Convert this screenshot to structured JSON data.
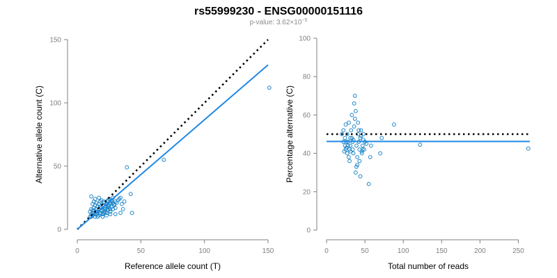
{
  "figure": {
    "title": "rs55999230 - ENSG00000151116",
    "subtitle": "p-value: 3.62×10",
    "subtitle_exponent": "−5"
  },
  "chart_data": [
    {
      "type": "scatter",
      "title": "",
      "xlabel": "Reference allele count (T)",
      "ylabel": "Alternative allele count (C)",
      "xlim": [
        0,
        150
      ],
      "ylim": [
        0,
        150
      ],
      "xticks": [
        0,
        50,
        100,
        150
      ],
      "yticks": [
        0,
        50,
        100,
        150
      ],
      "reference_line": {
        "style": "dotted",
        "color": "#000000",
        "from": [
          0,
          0
        ],
        "to": [
          150,
          150
        ]
      },
      "fit_line": {
        "style": "solid",
        "color": "#1e88e5",
        "from": [
          0,
          0
        ],
        "to": [
          150,
          130
        ]
      },
      "point_color": "#1f86c8",
      "points": [
        [
          10,
          10
        ],
        [
          11,
          12
        ],
        [
          12,
          11
        ],
        [
          13,
          13
        ],
        [
          14,
          10
        ],
        [
          15,
          12
        ],
        [
          16,
          14
        ],
        [
          17,
          11
        ],
        [
          18,
          13
        ],
        [
          19,
          15
        ],
        [
          20,
          12
        ],
        [
          21,
          14
        ],
        [
          22,
          16
        ],
        [
          23,
          13
        ],
        [
          24,
          15
        ],
        [
          25,
          17
        ],
        [
          26,
          14
        ],
        [
          27,
          18
        ],
        [
          28,
          16
        ],
        [
          29,
          20
        ],
        [
          30,
          17
        ],
        [
          10,
          14
        ],
        [
          11,
          16
        ],
        [
          12,
          15
        ],
        [
          13,
          17
        ],
        [
          14,
          19
        ],
        [
          15,
          21
        ],
        [
          16,
          18
        ],
        [
          17,
          20
        ],
        [
          18,
          22
        ],
        [
          19,
          17
        ],
        [
          20,
          19
        ],
        [
          21,
          21
        ],
        [
          22,
          18
        ],
        [
          23,
          20
        ],
        [
          24,
          22
        ],
        [
          25,
          19
        ],
        [
          26,
          21
        ],
        [
          27,
          23
        ],
        [
          28,
          25
        ],
        [
          12,
          20
        ],
        [
          13,
          22
        ],
        [
          11,
          26
        ],
        [
          14,
          24
        ],
        [
          17,
          25
        ],
        [
          19,
          23
        ],
        [
          21,
          22
        ],
        [
          25,
          24
        ],
        [
          27,
          22
        ],
        [
          24,
          23
        ],
        [
          29,
          19
        ],
        [
          31,
          21
        ],
        [
          33,
          24
        ],
        [
          35,
          20
        ],
        [
          36,
          16
        ],
        [
          34,
          13
        ],
        [
          30,
          12
        ],
        [
          26,
          12
        ],
        [
          23,
          11
        ],
        [
          20,
          10
        ],
        [
          16,
          10
        ],
        [
          14,
          12
        ],
        [
          12,
          13
        ],
        [
          11,
          10
        ],
        [
          13,
          15
        ],
        [
          15,
          16
        ],
        [
          17,
          16
        ],
        [
          18,
          18
        ],
        [
          22,
          17
        ],
        [
          24,
          18
        ],
        [
          26,
          20
        ],
        [
          28,
          21
        ],
        [
          30,
          22
        ],
        [
          32,
          23
        ],
        [
          34,
          25
        ],
        [
          37,
          22
        ],
        [
          39,
          49
        ],
        [
          42,
          28
        ],
        [
          43,
          13
        ],
        [
          68,
          55
        ],
        [
          151,
          112
        ],
        [
          20,
          15
        ],
        [
          22,
          14
        ],
        [
          24,
          16
        ],
        [
          26,
          16
        ],
        [
          15,
          14
        ],
        [
          18,
          12
        ],
        [
          21,
          13
        ]
      ]
    },
    {
      "type": "scatter",
      "title": "",
      "xlabel": "Total number of reads",
      "ylabel": "Percentage alternative (C)",
      "xlim": [
        0,
        265
      ],
      "ylim": [
        0,
        100
      ],
      "xticks": [
        0,
        50,
        100,
        150,
        200,
        250
      ],
      "yticks": [
        0,
        20,
        40,
        60,
        80,
        100
      ],
      "reference_line": {
        "style": "dotted",
        "color": "#000000",
        "y": 50
      },
      "fit_line": {
        "style": "solid",
        "color": "#1e88e5",
        "y": 46.2
      },
      "point_color": "#1f86c8",
      "points": [
        [
          20,
          50
        ],
        [
          22,
          52
        ],
        [
          24,
          48
        ],
        [
          25,
          55
        ],
        [
          26,
          46
        ],
        [
          27,
          50
        ],
        [
          28,
          44
        ],
        [
          29,
          56
        ],
        [
          30,
          42
        ],
        [
          31,
          48
        ],
        [
          32,
          52
        ],
        [
          33,
          60
        ],
        [
          34,
          46
        ],
        [
          35,
          40
        ],
        [
          36,
          54
        ],
        [
          37,
          58
        ],
        [
          38,
          62
        ],
        [
          39,
          44
        ],
        [
          40,
          38
        ],
        [
          41,
          50
        ],
        [
          42,
          46
        ],
        [
          43,
          42
        ],
        [
          44,
          48
        ],
        [
          45,
          52
        ],
        [
          46,
          40
        ],
        [
          47,
          44
        ],
        [
          48,
          50
        ],
        [
          49,
          42
        ],
        [
          50,
          46
        ],
        [
          24,
          44
        ],
        [
          25,
          42
        ],
        [
          27,
          40
        ],
        [
          28,
          46
        ],
        [
          29,
          38
        ],
        [
          30,
          36
        ],
        [
          31,
          44
        ],
        [
          33,
          48
        ],
        [
          34,
          42
        ],
        [
          36,
          66
        ],
        [
          37,
          70
        ],
        [
          38,
          30
        ],
        [
          39,
          33
        ],
        [
          40,
          34
        ],
        [
          41,
          56
        ],
        [
          42,
          52
        ],
        [
          44,
          28
        ],
        [
          45,
          49
        ],
        [
          46,
          41
        ],
        [
          48,
          47
        ],
        [
          52,
          45
        ],
        [
          55,
          24
        ],
        [
          57,
          38
        ],
        [
          58,
          44
        ],
        [
          70,
          40
        ],
        [
          72,
          48
        ],
        [
          88,
          55
        ],
        [
          122,
          44.5
        ],
        [
          263,
          42.5
        ],
        [
          22,
          46
        ],
        [
          23,
          41
        ],
        [
          26,
          43
        ],
        [
          31,
          41
        ],
        [
          35,
          47
        ],
        [
          43,
          36
        ],
        [
          47,
          42
        ]
      ]
    }
  ]
}
